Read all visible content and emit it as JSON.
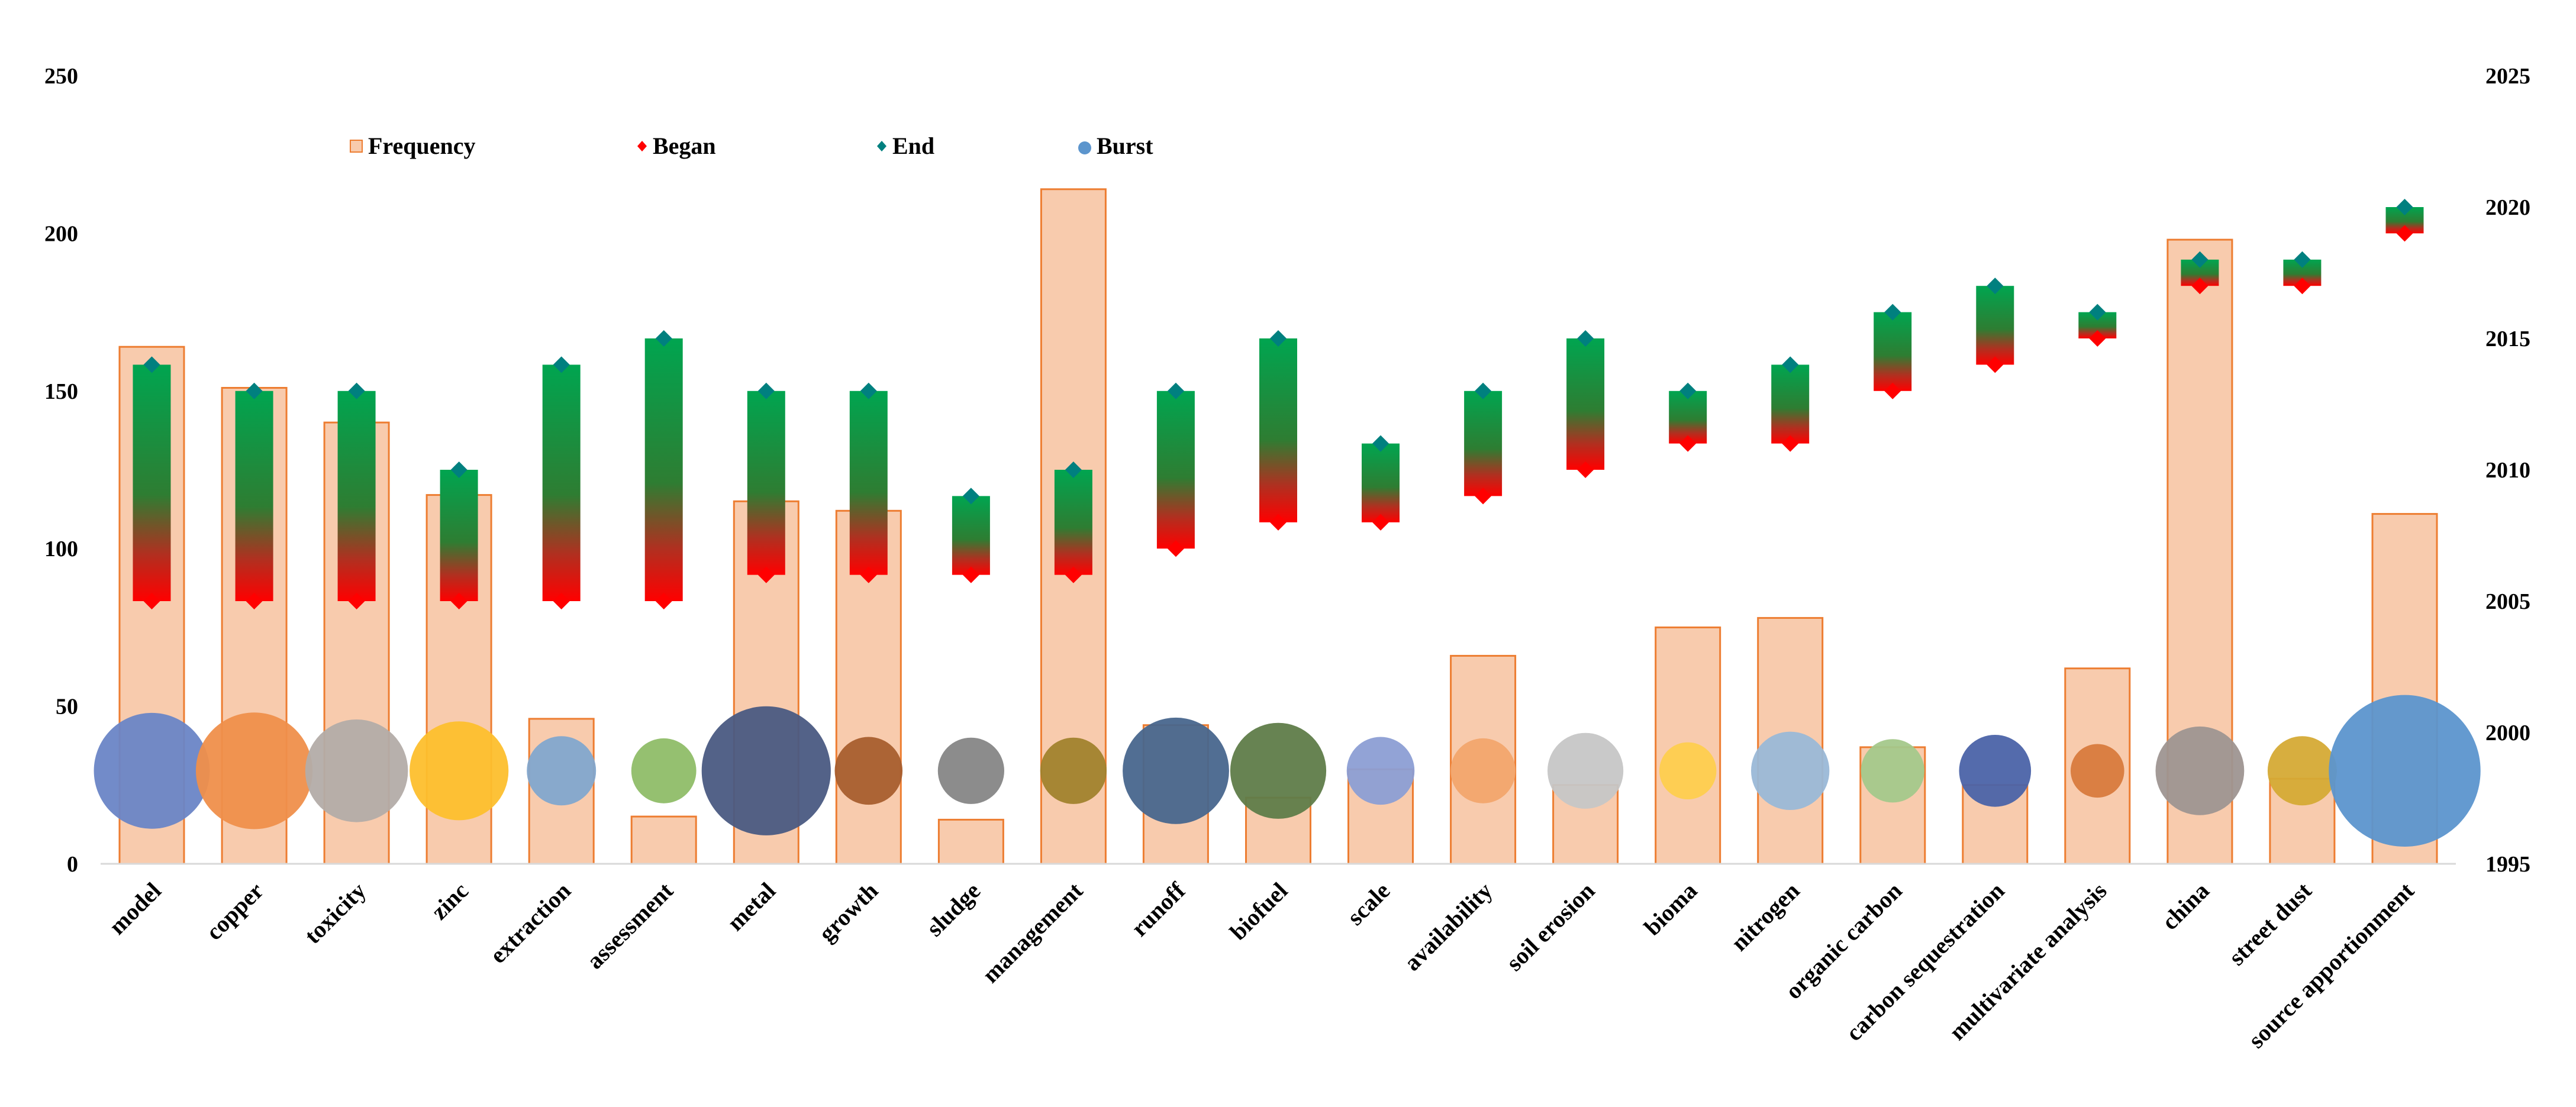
{
  "chart_data": {
    "type": "bar",
    "title": "",
    "xlabel": "",
    "ylabel": "",
    "ylim": [
      0,
      250
    ],
    "y2lim": [
      1995,
      2025
    ],
    "yticks": [
      0,
      50,
      100,
      150,
      200,
      250
    ],
    "y2ticks": [
      1995,
      2000,
      2005,
      2010,
      2015,
      2020,
      2025
    ],
    "legend": {
      "placement": "top-left",
      "frequency": "Frequency",
      "began": "Began",
      "end": "End",
      "burst": "Burst"
    },
    "colors": {
      "bar_fill": "#f8cbad",
      "bar_stroke": "#ed7d31",
      "began_marker": "#ff0000",
      "end_marker": "#00807f",
      "range_top": "#00a550",
      "range_bottom": "#ff0000"
    },
    "categories": [
      "model",
      "copper",
      "toxicity",
      "zinc",
      "extraction",
      "assessment",
      "metal",
      "growth",
      "sludge",
      "management",
      "runoff",
      "biofuel",
      "scale",
      "availability",
      "soil erosion",
      "bioma",
      "nitrogen",
      "organic carbon",
      "carbon sequestration",
      "multivariate analysis",
      "china",
      "street dust",
      "source apportionment"
    ],
    "series": [
      {
        "name": "Frequency",
        "axis": "left",
        "values": [
          164,
          151,
          140,
          117,
          46,
          15,
          115,
          112,
          14,
          214,
          44,
          21,
          30,
          66,
          25,
          75,
          78,
          37,
          25,
          62,
          198,
          27,
          111
        ]
      },
      {
        "name": "Began",
        "axis": "right",
        "values": [
          2005,
          2005,
          2005,
          2005,
          2005,
          2005,
          2006,
          2006,
          2006,
          2006,
          2007,
          2008,
          2008,
          2009,
          2010,
          2011,
          2011,
          2013,
          2014,
          2015,
          2017,
          2017,
          2019
        ]
      },
      {
        "name": "End",
        "axis": "right",
        "values": [
          2014,
          2013,
          2013,
          2010,
          2014,
          2015,
          2013,
          2013,
          2009,
          2010,
          2013,
          2015,
          2011,
          2013,
          2015,
          2013,
          2014,
          2016,
          2017,
          2016,
          2018,
          2018,
          2020
        ]
      },
      {
        "name": "Burst",
        "axis": "bubble",
        "values": [
          7.0,
          7.1,
          5.5,
          5.1,
          2.5,
          2.2,
          8.7,
          2.4,
          2.3,
          2.3,
          5.9,
          4.8,
          2.4,
          2.2,
          3.0,
          1.7,
          3.2,
          2.1,
          2.7,
          1.5,
          4.1,
          2.5,
          12.0
        ]
      }
    ],
    "bubble_colors": [
      "#6a85c6",
      "#ef8f4b",
      "#b3aca8",
      "#fdbf2d",
      "#82a6cd",
      "#8fbd68",
      "#4a5a82",
      "#a85e2e",
      "#868686",
      "#a1822d",
      "#48668d",
      "#5f7c49",
      "#8c9ed4",
      "#f2a56d",
      "#c6c6c6",
      "#fece4e",
      "#9ab8d7",
      "#a4c88b",
      "#4b63a8",
      "#d87a3d",
      "#9e9591",
      "#d5aa35",
      "#5c95cd"
    ]
  }
}
